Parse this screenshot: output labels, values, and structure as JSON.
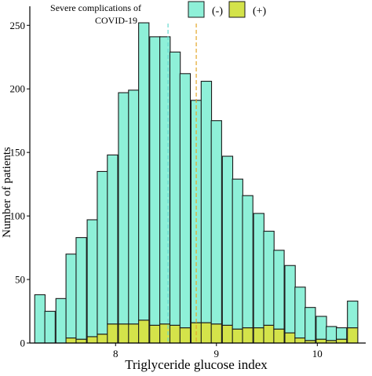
{
  "legend": {
    "title": "Severe complications of COVID-19",
    "items": [
      {
        "label": "(-)",
        "color": "#8ef0d8"
      },
      {
        "label": "(+)",
        "color": "#d4e34a"
      }
    ]
  },
  "chart_data": {
    "type": "bar",
    "stacked": true,
    "xlabel": "Triglyceride glucose index",
    "ylabel": "Number of patients",
    "xlim": [
      7.15,
      10.48
    ],
    "ylim": [
      0,
      265
    ],
    "xticks": [
      8,
      9,
      10
    ],
    "yticks": [
      0,
      50,
      100,
      150,
      200,
      250
    ],
    "bin_width": 0.1029,
    "bin_centers": [
      7.25,
      7.35,
      7.46,
      7.56,
      7.66,
      7.77,
      7.87,
      7.97,
      8.08,
      8.18,
      8.28,
      8.39,
      8.49,
      8.59,
      8.69,
      8.8,
      8.9,
      9.0,
      9.11,
      9.21,
      9.31,
      9.42,
      9.52,
      9.62,
      9.73,
      9.83,
      9.93,
      10.04,
      10.14,
      10.24,
      10.35
    ],
    "series": [
      {
        "name": "(-)",
        "color": "#8ef0d8",
        "values": [
          38,
          25,
          35,
          66,
          80,
          92,
          128,
          133,
          182,
          184,
          234,
          227,
          226,
          215,
          200,
          175,
          190,
          160,
          133,
          118,
          104,
          90,
          74,
          62,
          53,
          40,
          26,
          18,
          11,
          9,
          21
        ]
      },
      {
        "name": "(+)",
        "color": "#d4e34a",
        "values": [
          0,
          0,
          0,
          4,
          3,
          5,
          7,
          15,
          15,
          15,
          18,
          14,
          15,
          14,
          12,
          16,
          16,
          15,
          14,
          11,
          12,
          12,
          14,
          11,
          8,
          4,
          2,
          3,
          2,
          3,
          12
        ]
      }
    ],
    "vlines": [
      {
        "x": 8.52,
        "color": "#66d9d0",
        "style": "dashed"
      },
      {
        "x": 8.8,
        "color": "#e3a72b",
        "style": "dashed"
      }
    ],
    "grid": false
  }
}
